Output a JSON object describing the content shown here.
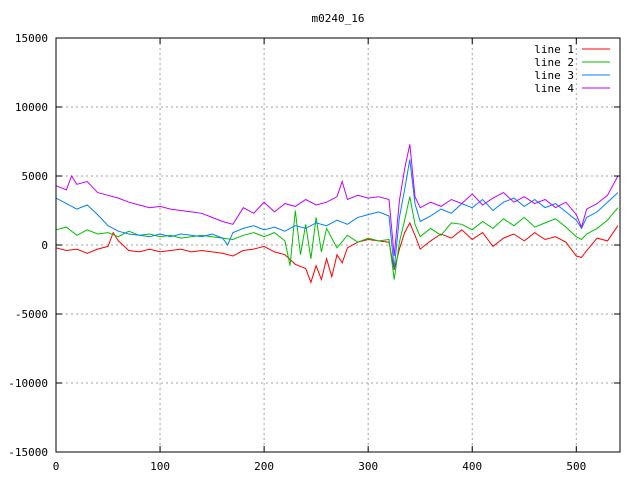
{
  "chart_data": {
    "type": "line",
    "title": "m0240_16",
    "xlabel": "",
    "ylabel": "",
    "xlim": [
      0,
      542
    ],
    "ylim": [
      -15000,
      15000
    ],
    "xticks": [
      0,
      100,
      200,
      300,
      400,
      500
    ],
    "yticks": [
      -15000,
      -10000,
      -5000,
      0,
      5000,
      10000,
      15000
    ],
    "grid": true,
    "legend_position": "top-right",
    "series": [
      {
        "name": "line 1",
        "color": "#ff0000",
        "points": [
          [
            0,
            -200
          ],
          [
            10,
            -400
          ],
          [
            20,
            -300
          ],
          [
            30,
            -600
          ],
          [
            40,
            -300
          ],
          [
            50,
            -100
          ],
          [
            55,
            900
          ],
          [
            60,
            300
          ],
          [
            70,
            -400
          ],
          [
            80,
            -500
          ],
          [
            90,
            -300
          ],
          [
            100,
            -500
          ],
          [
            110,
            -400
          ],
          [
            120,
            -300
          ],
          [
            130,
            -500
          ],
          [
            140,
            -400
          ],
          [
            150,
            -500
          ],
          [
            160,
            -600
          ],
          [
            170,
            -800
          ],
          [
            180,
            -400
          ],
          [
            190,
            -300
          ],
          [
            200,
            -100
          ],
          [
            210,
            -500
          ],
          [
            220,
            -700
          ],
          [
            230,
            -1400
          ],
          [
            240,
            -1700
          ],
          [
            245,
            -2700
          ],
          [
            250,
            -1500
          ],
          [
            255,
            -2500
          ],
          [
            260,
            -1000
          ],
          [
            265,
            -2300
          ],
          [
            270,
            -700
          ],
          [
            275,
            -1300
          ],
          [
            280,
            -200
          ],
          [
            290,
            200
          ],
          [
            300,
            400
          ],
          [
            310,
            300
          ],
          [
            320,
            200
          ],
          [
            325,
            -1800
          ],
          [
            330,
            -300
          ],
          [
            335,
            900
          ],
          [
            340,
            1600
          ],
          [
            345,
            700
          ],
          [
            350,
            -300
          ],
          [
            360,
            300
          ],
          [
            370,
            800
          ],
          [
            380,
            500
          ],
          [
            390,
            1100
          ],
          [
            400,
            400
          ],
          [
            410,
            900
          ],
          [
            420,
            -100
          ],
          [
            430,
            500
          ],
          [
            440,
            800
          ],
          [
            450,
            300
          ],
          [
            460,
            900
          ],
          [
            470,
            400
          ],
          [
            480,
            600
          ],
          [
            490,
            200
          ],
          [
            500,
            -800
          ],
          [
            505,
            -900
          ],
          [
            510,
            -400
          ],
          [
            520,
            500
          ],
          [
            530,
            300
          ],
          [
            540,
            1400
          ]
        ]
      },
      {
        "name": "line 2",
        "color": "#00c000",
        "points": [
          [
            0,
            1100
          ],
          [
            10,
            1300
          ],
          [
            20,
            700
          ],
          [
            30,
            1100
          ],
          [
            40,
            800
          ],
          [
            50,
            900
          ],
          [
            60,
            600
          ],
          [
            70,
            1000
          ],
          [
            80,
            700
          ],
          [
            90,
            800
          ],
          [
            100,
            600
          ],
          [
            110,
            700
          ],
          [
            120,
            500
          ],
          [
            130,
            600
          ],
          [
            140,
            700
          ],
          [
            150,
            600
          ],
          [
            160,
            500
          ],
          [
            170,
            400
          ],
          [
            180,
            700
          ],
          [
            190,
            900
          ],
          [
            200,
            600
          ],
          [
            210,
            900
          ],
          [
            220,
            300
          ],
          [
            225,
            -1500
          ],
          [
            230,
            2500
          ],
          [
            235,
            -700
          ],
          [
            240,
            1500
          ],
          [
            245,
            -1000
          ],
          [
            250,
            2000
          ],
          [
            255,
            -500
          ],
          [
            260,
            1200
          ],
          [
            270,
            -200
          ],
          [
            280,
            700
          ],
          [
            290,
            200
          ],
          [
            300,
            500
          ],
          [
            310,
            300
          ],
          [
            320,
            400
          ],
          [
            325,
            -2500
          ],
          [
            330,
            200
          ],
          [
            335,
            1800
          ],
          [
            340,
            3500
          ],
          [
            345,
            1500
          ],
          [
            350,
            600
          ],
          [
            360,
            1200
          ],
          [
            370,
            700
          ],
          [
            380,
            1600
          ],
          [
            390,
            1500
          ],
          [
            400,
            1100
          ],
          [
            410,
            1700
          ],
          [
            420,
            1200
          ],
          [
            430,
            1900
          ],
          [
            440,
            1400
          ],
          [
            450,
            2000
          ],
          [
            460,
            1300
          ],
          [
            470,
            1600
          ],
          [
            480,
            1900
          ],
          [
            490,
            1300
          ],
          [
            500,
            600
          ],
          [
            505,
            400
          ],
          [
            510,
            800
          ],
          [
            520,
            1200
          ],
          [
            530,
            1800
          ],
          [
            540,
            2700
          ]
        ]
      },
      {
        "name": "line 3",
        "color": "#0080ff",
        "points": [
          [
            0,
            3400
          ],
          [
            10,
            3000
          ],
          [
            20,
            2600
          ],
          [
            30,
            2900
          ],
          [
            40,
            2200
          ],
          [
            50,
            1400
          ],
          [
            60,
            1000
          ],
          [
            70,
            800
          ],
          [
            80,
            700
          ],
          [
            90,
            600
          ],
          [
            100,
            800
          ],
          [
            110,
            600
          ],
          [
            120,
            800
          ],
          [
            130,
            700
          ],
          [
            140,
            600
          ],
          [
            150,
            800
          ],
          [
            160,
            500
          ],
          [
            165,
            0
          ],
          [
            170,
            900
          ],
          [
            180,
            1200
          ],
          [
            190,
            1400
          ],
          [
            200,
            1100
          ],
          [
            210,
            1300
          ],
          [
            220,
            1000
          ],
          [
            230,
            1400
          ],
          [
            240,
            1200
          ],
          [
            250,
            1600
          ],
          [
            260,
            1400
          ],
          [
            270,
            1800
          ],
          [
            280,
            1500
          ],
          [
            290,
            2000
          ],
          [
            300,
            2200
          ],
          [
            310,
            2400
          ],
          [
            320,
            2100
          ],
          [
            325,
            -1700
          ],
          [
            330,
            2000
          ],
          [
            335,
            4000
          ],
          [
            340,
            6200
          ],
          [
            345,
            3000
          ],
          [
            350,
            1700
          ],
          [
            360,
            2100
          ],
          [
            370,
            2600
          ],
          [
            380,
            2300
          ],
          [
            390,
            3000
          ],
          [
            400,
            2700
          ],
          [
            410,
            3300
          ],
          [
            420,
            2500
          ],
          [
            430,
            3100
          ],
          [
            440,
            3400
          ],
          [
            450,
            2800
          ],
          [
            460,
            3300
          ],
          [
            470,
            2700
          ],
          [
            480,
            3000
          ],
          [
            490,
            2400
          ],
          [
            500,
            1800
          ],
          [
            505,
            1200
          ],
          [
            510,
            2000
          ],
          [
            520,
            2400
          ],
          [
            530,
            3100
          ],
          [
            540,
            3800
          ]
        ]
      },
      {
        "name": "line 4",
        "color": "#c000ff",
        "points": [
          [
            0,
            4300
          ],
          [
            10,
            4000
          ],
          [
            15,
            5000
          ],
          [
            20,
            4400
          ],
          [
            30,
            4600
          ],
          [
            40,
            3800
          ],
          [
            50,
            3600
          ],
          [
            60,
            3400
          ],
          [
            70,
            3100
          ],
          [
            80,
            2900
          ],
          [
            90,
            2700
          ],
          [
            100,
            2800
          ],
          [
            110,
            2600
          ],
          [
            120,
            2500
          ],
          [
            130,
            2400
          ],
          [
            140,
            2300
          ],
          [
            150,
            2000
          ],
          [
            160,
            1700
          ],
          [
            170,
            1500
          ],
          [
            180,
            2700
          ],
          [
            190,
            2300
          ],
          [
            200,
            3100
          ],
          [
            210,
            2400
          ],
          [
            220,
            3000
          ],
          [
            230,
            2800
          ],
          [
            240,
            3300
          ],
          [
            250,
            2900
          ],
          [
            260,
            3100
          ],
          [
            270,
            3500
          ],
          [
            275,
            4600
          ],
          [
            280,
            3300
          ],
          [
            290,
            3600
          ],
          [
            300,
            3400
          ],
          [
            310,
            3500
          ],
          [
            320,
            3300
          ],
          [
            325,
            -800
          ],
          [
            330,
            3200
          ],
          [
            335,
            5500
          ],
          [
            340,
            7300
          ],
          [
            345,
            3500
          ],
          [
            350,
            2700
          ],
          [
            360,
            3100
          ],
          [
            370,
            2800
          ],
          [
            380,
            3300
          ],
          [
            390,
            3000
          ],
          [
            400,
            3700
          ],
          [
            410,
            2900
          ],
          [
            420,
            3400
          ],
          [
            430,
            3800
          ],
          [
            440,
            3100
          ],
          [
            450,
            3500
          ],
          [
            460,
            3000
          ],
          [
            470,
            3300
          ],
          [
            480,
            2700
          ],
          [
            490,
            3100
          ],
          [
            500,
            2200
          ],
          [
            505,
            1300
          ],
          [
            510,
            2600
          ],
          [
            520,
            3000
          ],
          [
            530,
            3600
          ],
          [
            540,
            5000
          ]
        ]
      }
    ]
  }
}
